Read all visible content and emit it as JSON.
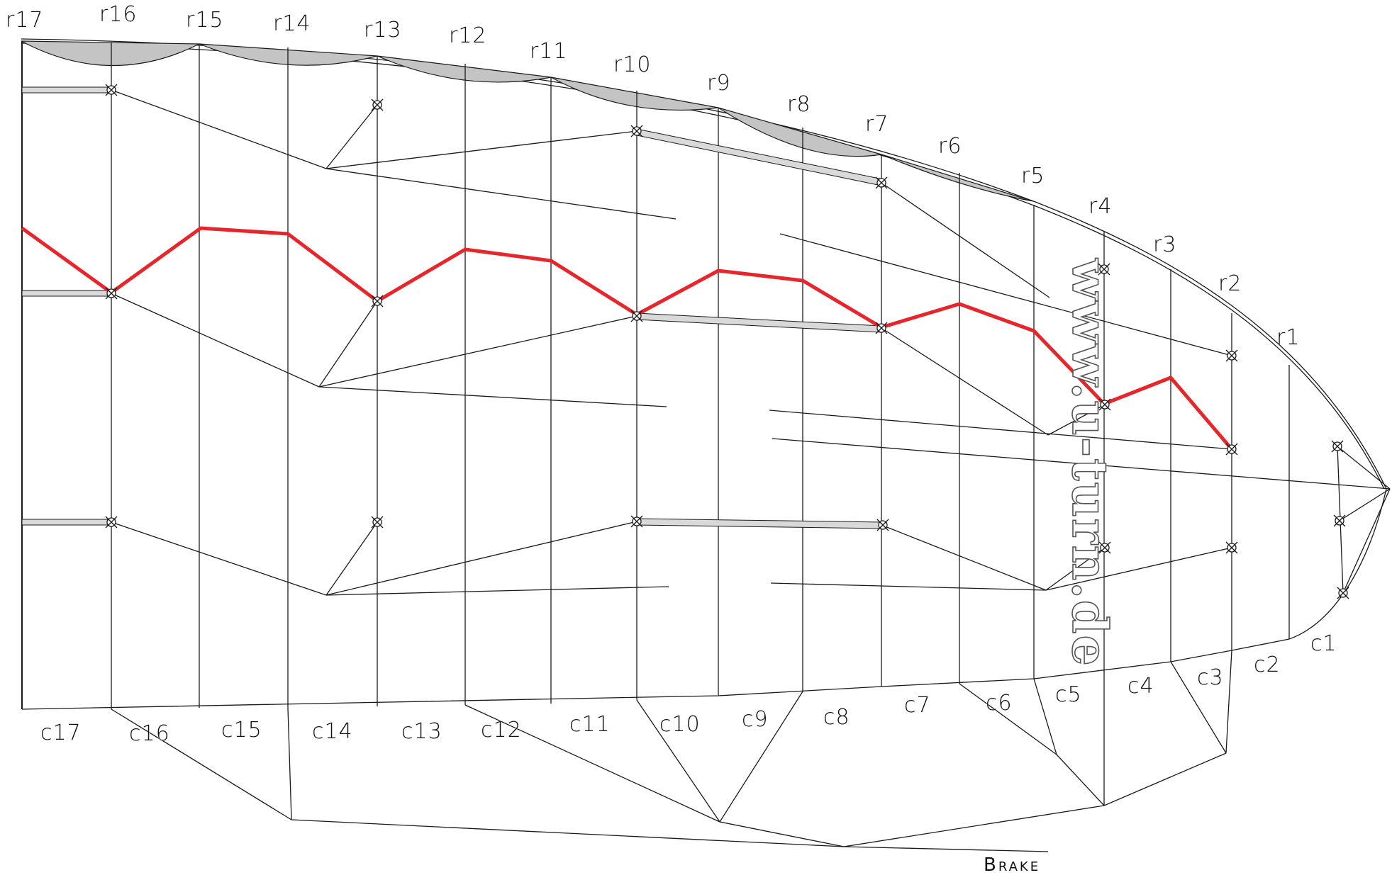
{
  "diagram": {
    "rib_labels": [
      "r17",
      "r16",
      "r15",
      "r14",
      "r13",
      "r12",
      "r11",
      "r10",
      "r9",
      "r8",
      "r7",
      "r6",
      "r5",
      "r4",
      "r3",
      "r2",
      "r1"
    ],
    "cell_labels": [
      "c17",
      "c16",
      "c15",
      "c14",
      "c13",
      "c12",
      "c11",
      "c10",
      "c9",
      "c8",
      "c7",
      "c6",
      "c5",
      "c4",
      "c3",
      "c2",
      "c1"
    ],
    "brake_label": "Brake",
    "watermark": "www.u-turn.de",
    "colors": {
      "line": "#1a1a1a",
      "highlight_line": "#e8252b",
      "intake_fill": "#c4c4c4",
      "reinforcement_fill": "#d9d9d9"
    },
    "icons": [
      "attachment-point-icon"
    ]
  }
}
